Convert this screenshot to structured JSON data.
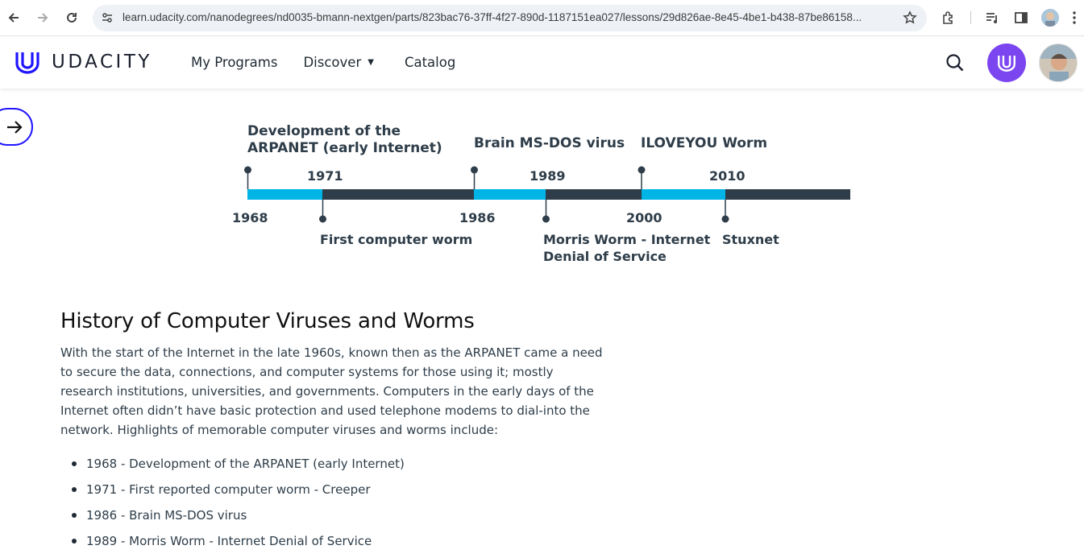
{
  "browser": {
    "url": "learn.udacity.com/nanodegrees/nd0035-bmann-nextgen/parts/823bac76-37ff-4f27-890d-1187151ea027/lessons/29d826ae-8e45-4be1-b438-87be86158..."
  },
  "header": {
    "brand": "UDACITY",
    "nav": [
      {
        "label": "My Programs"
      },
      {
        "label": "Discover"
      },
      {
        "label": "Catalog"
      }
    ],
    "icons": {
      "search": "search-icon",
      "badge": "udacity-logo-icon",
      "avatar": "user-avatar"
    }
  },
  "colors": {
    "accent": "#2015ff",
    "badge": "#7b45f0",
    "timeline_highlight": "#00b4e5",
    "timeline_dark": "#2e3d49"
  },
  "timeline": {
    "above": [
      {
        "title_line1": "Development of the",
        "title_line2": "ARPANET (early Internet)",
        "year": "1968"
      },
      {
        "title": "Brain MS-DOS virus",
        "year": "1986"
      },
      {
        "title": "ILOVEYOU Worm",
        "year": "2000"
      }
    ],
    "below": [
      {
        "title": "First computer worm",
        "year": "1971"
      },
      {
        "title_line1": "Morris Worm - Internet",
        "title_line2": "Denial of Service",
        "year": "1989"
      },
      {
        "title": "Stuxnet",
        "year": "2010"
      }
    ]
  },
  "article": {
    "heading": "History of Computer Viruses and Worms",
    "paragraph": "With the start of the Internet in the late 1960s, known then as the ARPANET came a need to secure the data, connections, and computer systems for those using it; mostly research institutions, universities, and governments. Computers in the early days of the Internet often didn’t have basic protection and used telephone modems to dial-into the network. Highlights of memorable computer viruses and worms include:",
    "bullets": [
      "1968 - Development of the ARPANET (early Internet)",
      "1971 - First reported computer worm - Creeper",
      "1986 - Brain MS-DOS virus",
      "1989 - Morris Worm - Internet Denial of Service"
    ]
  }
}
